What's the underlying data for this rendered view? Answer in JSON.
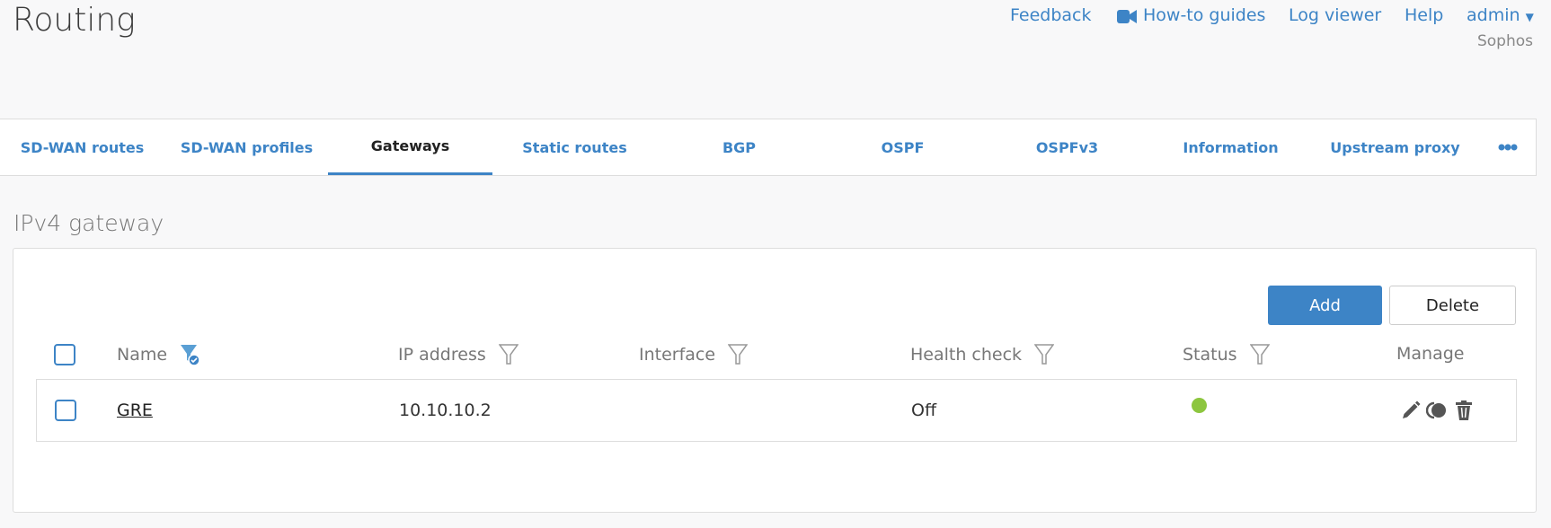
{
  "header": {
    "title": "Routing",
    "links": {
      "feedback": "Feedback",
      "howto": "How-to guides",
      "logviewer": "Log viewer",
      "help": "Help",
      "user": "admin"
    },
    "org": "Sophos"
  },
  "tabs": [
    {
      "label": "SD-WAN routes"
    },
    {
      "label": "SD-WAN profiles"
    },
    {
      "label": "Gateways",
      "active": true
    },
    {
      "label": "Static routes"
    },
    {
      "label": "BGP"
    },
    {
      "label": "OSPF"
    },
    {
      "label": "OSPFv3"
    },
    {
      "label": "Information"
    },
    {
      "label": "Upstream proxy"
    }
  ],
  "section": {
    "title": "IPv4 gateway",
    "add_label": "Add",
    "delete_label": "Delete"
  },
  "table": {
    "columns": [
      "Name",
      "IP address",
      "Interface",
      "Health check",
      "Status",
      "Manage"
    ],
    "rows": [
      {
        "name": "GRE",
        "ip": "10.10.10.2",
        "interface": "",
        "health_check": "Off",
        "status": "active",
        "status_color": "#8dc63f"
      }
    ]
  },
  "colors": {
    "accent": "#3d84c6"
  }
}
